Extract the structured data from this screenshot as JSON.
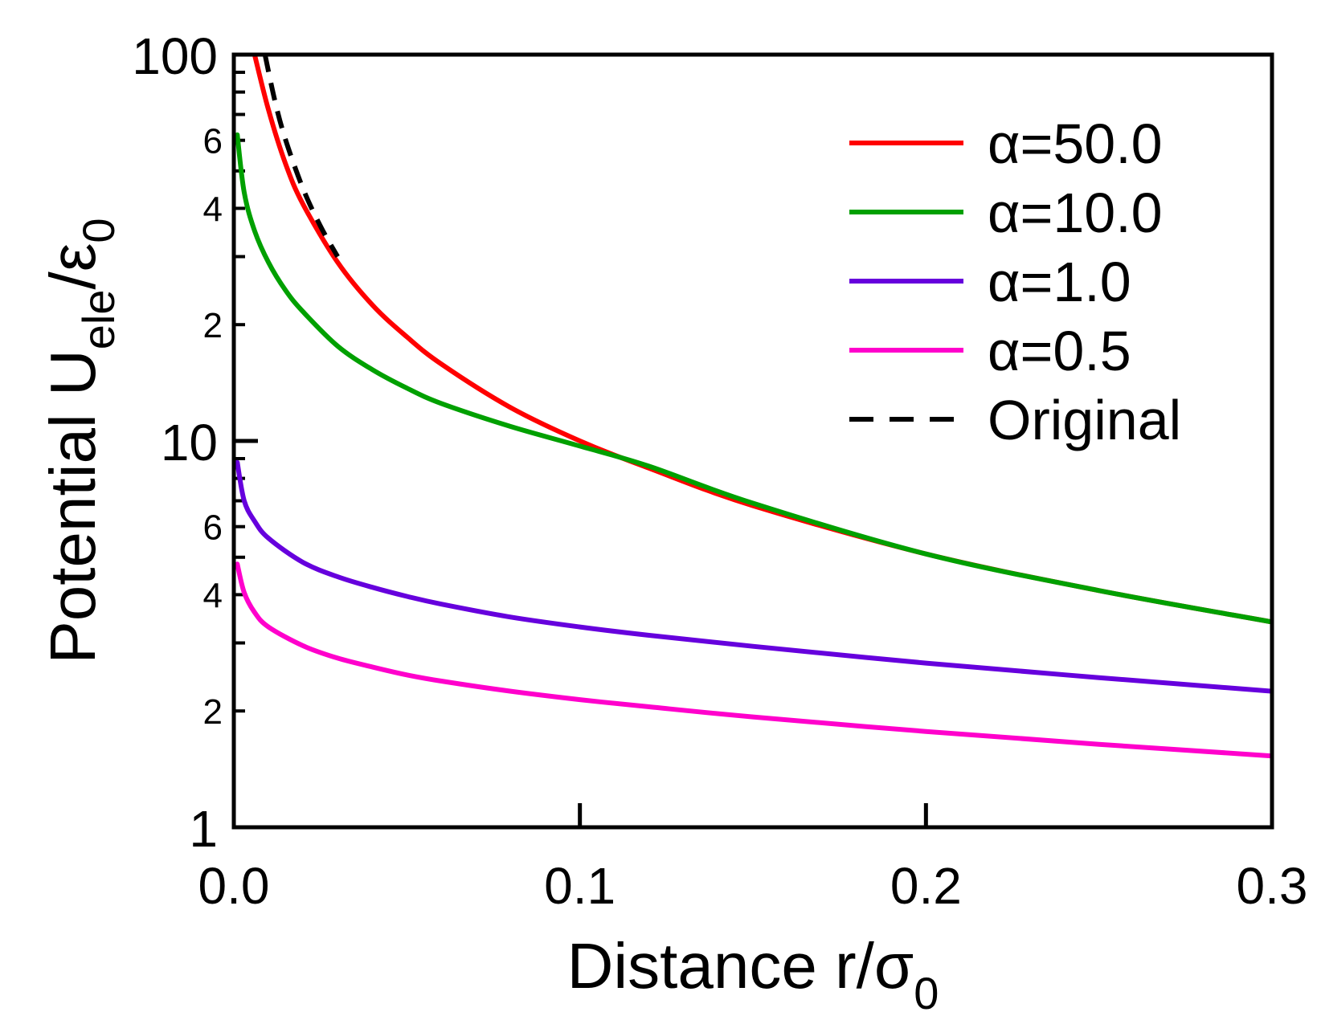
{
  "chart_data": {
    "type": "line",
    "title": "",
    "xlabel": {
      "main": "Distance r/σ",
      "sub": "0"
    },
    "ylabel": {
      "main": "Potential U",
      "sub1": "ele",
      "mid": "/ε",
      "sub2": "0"
    },
    "x_scale": "linear",
    "y_scale": "log",
    "xlim": [
      0.0,
      0.3
    ],
    "ylim": [
      1,
      100
    ],
    "x_ticks": [
      {
        "value": 0.0,
        "label": "0.0"
      },
      {
        "value": 0.1,
        "label": "0.1"
      },
      {
        "value": 0.2,
        "label": "0.2"
      },
      {
        "value": 0.3,
        "label": "0.3"
      }
    ],
    "y_major_ticks": [
      {
        "value": 1,
        "label": "1"
      },
      {
        "value": 10,
        "label": "10"
      },
      {
        "value": 100,
        "label": "100"
      }
    ],
    "y_minor_labels": [
      {
        "value": 2,
        "label": "2"
      },
      {
        "value": 4,
        "label": "4"
      },
      {
        "value": 6,
        "label": "6"
      },
      {
        "value": 20,
        "label": "2"
      },
      {
        "value": 40,
        "label": "4"
      },
      {
        "value": 60,
        "label": "6"
      }
    ],
    "legend_position": "top-right",
    "series": [
      {
        "name": "α=50.0",
        "color": "#ff0000",
        "dash": "solid",
        "x": [
          0.006,
          0.01,
          0.015,
          0.02,
          0.03,
          0.04,
          0.05,
          0.06,
          0.08,
          0.1,
          0.12,
          0.15,
          0.2,
          0.25,
          0.3
        ],
        "y": [
          100,
          72,
          52,
          41,
          29,
          22.5,
          18.6,
          15.8,
          12.2,
          10,
          8.5,
          6.8,
          5.1,
          4.1,
          3.4
        ]
      },
      {
        "name": "α=10.0",
        "color": "#00a000",
        "dash": "solid",
        "x": [
          0.001,
          0.003,
          0.006,
          0.01,
          0.015,
          0.02,
          0.03,
          0.04,
          0.05,
          0.06,
          0.08,
          0.1,
          0.12,
          0.15,
          0.2,
          0.25,
          0.3
        ],
        "y": [
          62,
          44,
          35,
          29,
          24.5,
          21.6,
          17.6,
          15.3,
          13.7,
          12.5,
          10.9,
          9.7,
          8.6,
          6.9,
          5.1,
          4.1,
          3.4
        ]
      },
      {
        "name": "α=1.0",
        "color": "#6600dd",
        "dash": "solid",
        "x": [
          0.001,
          0.003,
          0.006,
          0.01,
          0.02,
          0.03,
          0.04,
          0.05,
          0.06,
          0.08,
          0.1,
          0.12,
          0.15,
          0.2,
          0.25,
          0.3
        ],
        "y": [
          8.8,
          7.0,
          6.2,
          5.6,
          4.85,
          4.45,
          4.18,
          3.96,
          3.78,
          3.5,
          3.3,
          3.14,
          2.94,
          2.66,
          2.44,
          2.25
        ]
      },
      {
        "name": "α=0.5",
        "color": "#ff00cc",
        "dash": "solid",
        "x": [
          0.001,
          0.003,
          0.006,
          0.01,
          0.02,
          0.03,
          0.04,
          0.05,
          0.06,
          0.08,
          0.1,
          0.12,
          0.15,
          0.2,
          0.25,
          0.3
        ],
        "y": [
          4.8,
          4.05,
          3.6,
          3.3,
          2.95,
          2.74,
          2.6,
          2.48,
          2.39,
          2.25,
          2.14,
          2.05,
          1.93,
          1.77,
          1.64,
          1.53
        ]
      },
      {
        "name": "Original",
        "color": "#000000",
        "dash": "dashed",
        "x": [
          0.009,
          0.012,
          0.015,
          0.02,
          0.025,
          0.03
        ],
        "y": [
          100,
          75,
          60,
          45,
          36,
          30
        ]
      }
    ]
  }
}
